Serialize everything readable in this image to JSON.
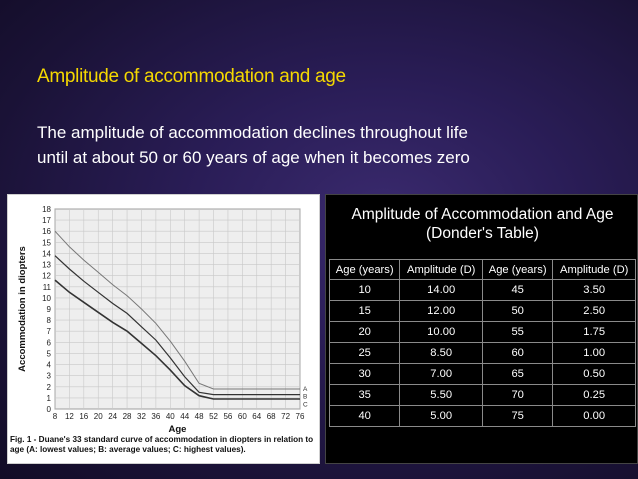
{
  "slide": {
    "title": "Amplitude of accommodation and age",
    "body_lines": [
      "The amplitude of accommodation declines throughout life",
      "until at about 50 or 60 years of age when it becomes zero"
    ]
  },
  "figure": {
    "caption": "Fig. 1 - Duane's 33 standard curve of accommodation in diopters in relation to age (A: lowest values; B: average values; C: highest values).",
    "chart_data": {
      "type": "line",
      "title": "",
      "xlabel": "Age",
      "ylabel": "Accommodation in diopters",
      "xlim": [
        8,
        76
      ],
      "ylim": [
        0,
        18
      ],
      "x_ticks": [
        8,
        12,
        16,
        20,
        24,
        28,
        32,
        36,
        40,
        44,
        48,
        52,
        56,
        60,
        64,
        68,
        72,
        76
      ],
      "y_ticks": [
        0,
        1,
        2,
        3,
        4,
        5,
        6,
        7,
        8,
        9,
        10,
        11,
        12,
        13,
        14,
        15,
        16,
        17,
        18
      ],
      "grid": true,
      "series": [
        {
          "name": "A",
          "x": [
            8,
            12,
            16,
            20,
            24,
            28,
            32,
            36,
            40,
            44,
            48,
            52,
            56,
            60,
            64,
            68,
            72,
            76
          ],
          "values": [
            11.6,
            10.5,
            9.6,
            8.7,
            7.8,
            7.0,
            5.9,
            4.8,
            3.5,
            2.1,
            1.2,
            0.9,
            0.9,
            0.9,
            0.9,
            0.9,
            0.9,
            0.9
          ]
        },
        {
          "name": "B",
          "x": [
            8,
            12,
            16,
            20,
            24,
            28,
            32,
            36,
            40,
            44,
            48,
            52,
            56,
            60,
            64,
            68,
            72,
            76
          ],
          "values": [
            13.8,
            12.6,
            11.5,
            10.5,
            9.5,
            8.6,
            7.4,
            6.2,
            4.6,
            2.9,
            1.5,
            1.3,
            1.3,
            1.3,
            1.3,
            1.3,
            1.3,
            1.3
          ]
        },
        {
          "name": "C",
          "x": [
            8,
            12,
            16,
            20,
            24,
            28,
            32,
            36,
            40,
            44,
            48,
            52,
            56,
            60,
            64,
            68,
            72,
            76
          ],
          "values": [
            16.0,
            14.6,
            13.4,
            12.3,
            11.2,
            10.2,
            9.0,
            7.7,
            6.1,
            4.3,
            2.3,
            1.8,
            1.8,
            1.8,
            1.8,
            1.8,
            1.8,
            1.8
          ]
        }
      ],
      "series_labels": [
        "A",
        "B",
        "C"
      ]
    }
  },
  "table": {
    "title_line1": "Amplitude of Accommodation and Age",
    "title_line2": "(Donder's Table)",
    "headers": [
      "Age (years)",
      "Amplitude (D)",
      "Age (years)",
      "Amplitude (D)"
    ],
    "rows": [
      [
        "10",
        "14.00",
        "45",
        "3.50"
      ],
      [
        "15",
        "12.00",
        "50",
        "2.50"
      ],
      [
        "20",
        "10.00",
        "55",
        "1.75"
      ],
      [
        "25",
        "8.50",
        "60",
        "1.00"
      ],
      [
        "30",
        "7.00",
        "65",
        "0.50"
      ],
      [
        "35",
        "5.50",
        "70",
        "0.25"
      ],
      [
        "40",
        "5.00",
        "75",
        "0.00"
      ]
    ]
  }
}
